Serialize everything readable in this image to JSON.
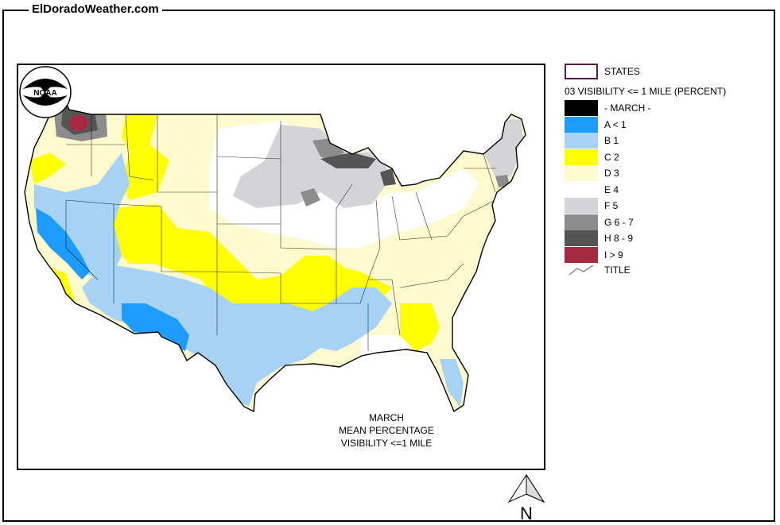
{
  "header": {
    "site_title": "ElDoradoWeather.com"
  },
  "map": {
    "caption": [
      "MARCH",
      "MEAN PERCENTAGE",
      "VISIBILITY <=1 MILE"
    ],
    "logo_text": "NOAA",
    "north_label": "N"
  },
  "legend": {
    "states_label": "STATES",
    "heading": "03 VISIBILITY <= 1 MILE (PERCENT)",
    "items": [
      {
        "label": "- MARCH -",
        "color": "#000000"
      },
      {
        "label": "A < 1",
        "color": "#1e9bff"
      },
      {
        "label": "B 1",
        "color": "#a5d2f5"
      },
      {
        "label": "C 2",
        "color": "#ffff00"
      },
      {
        "label": "D 3",
        "color": "#fffacd"
      },
      {
        "label": "E 4",
        "color": "#ffffff"
      },
      {
        "label": "F 5",
        "color": "#d3d3d8"
      },
      {
        "label": "G 6 - 7",
        "color": "#8c8c8c"
      },
      {
        "label": "H 8 - 9",
        "color": "#555555"
      },
      {
        "label": "I > 9",
        "color": "#a52a3f"
      }
    ],
    "title_label": "TITLE"
  }
}
